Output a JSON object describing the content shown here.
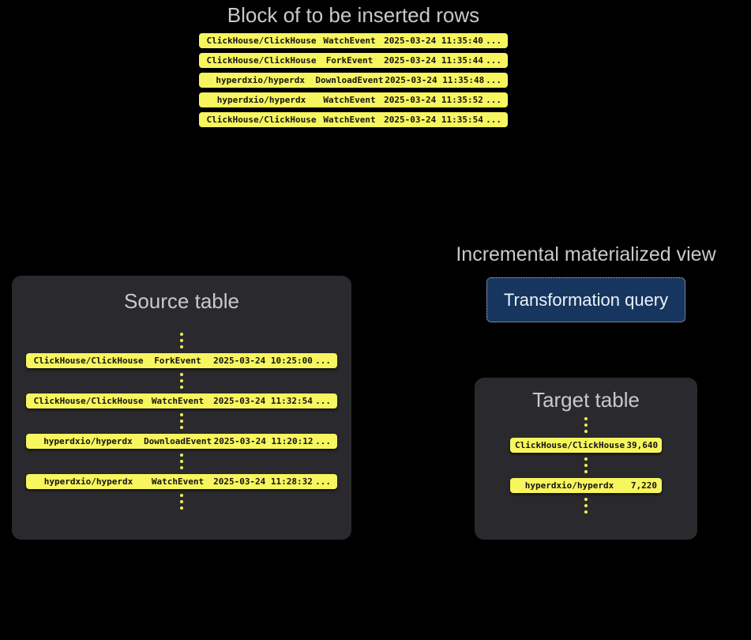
{
  "colors": {
    "background": "#000000",
    "panel_background": "#2a2a2e",
    "row_yellow": "#f7f65e",
    "row_text": "#141414",
    "heading_gray": "#c7c9cd",
    "button_background": "#16365f",
    "button_border": "#c6cfdd",
    "button_text": "#eef2f7"
  },
  "block": {
    "title": "Block of to be inserted rows",
    "rows": [
      {
        "repo": "ClickHouse/ClickHouse",
        "event": "WatchEvent",
        "timestamp": "2025-03-24 11:35:40",
        "more": "..."
      },
      {
        "repo": "ClickHouse/ClickHouse",
        "event": "ForkEvent",
        "timestamp": "2025-03-24 11:35:44",
        "more": "..."
      },
      {
        "repo": "hyperdxio/hyperdx",
        "event": "DownloadEvent",
        "timestamp": "2025-03-24 11:35:48",
        "more": "..."
      },
      {
        "repo": "hyperdxio/hyperdx",
        "event": "WatchEvent",
        "timestamp": "2025-03-24 11:35:52",
        "more": "..."
      },
      {
        "repo": "ClickHouse/ClickHouse",
        "event": "WatchEvent",
        "timestamp": "2025-03-24 11:35:54",
        "more": "..."
      }
    ]
  },
  "source_table": {
    "title": "Source table",
    "rows": [
      {
        "repo": "ClickHouse/ClickHouse",
        "event": "ForkEvent",
        "timestamp": "2025-03-24 10:25:00",
        "more": "..."
      },
      {
        "repo": "ClickHouse/ClickHouse",
        "event": "WatchEvent",
        "timestamp": "2025-03-24 11:32:54",
        "more": "..."
      },
      {
        "repo": "hyperdxio/hyperdx",
        "event": "DownloadEvent",
        "timestamp": "2025-03-24 11:20:12",
        "more": "..."
      },
      {
        "repo": "hyperdxio/hyperdx",
        "event": "WatchEvent",
        "timestamp": "2025-03-24 11:28:32",
        "more": "..."
      }
    ]
  },
  "materialized_view": {
    "label": "Incremental materialized view",
    "button_label": "Transformation query"
  },
  "target_table": {
    "title": "Target table",
    "rows": [
      {
        "repo": "ClickHouse/ClickHouse",
        "count": "39,640"
      },
      {
        "repo": "hyperdxio/hyperdx",
        "count": "7,220"
      }
    ]
  }
}
